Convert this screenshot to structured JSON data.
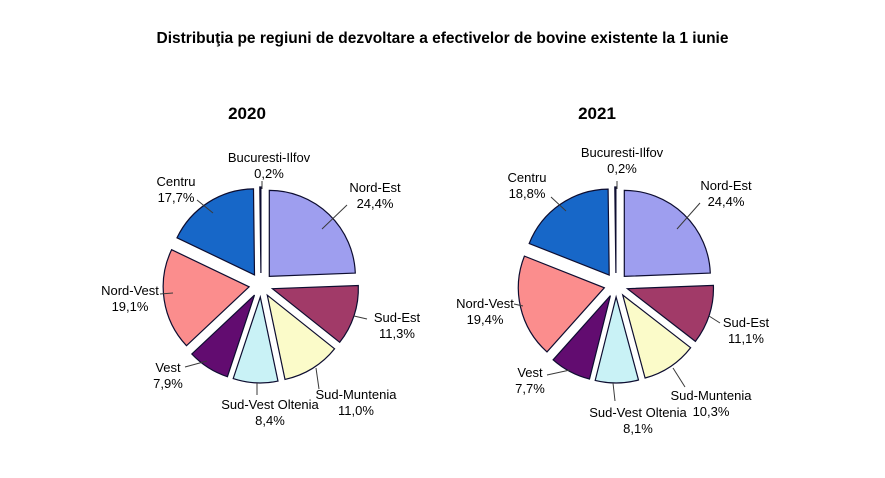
{
  "page": {
    "title": "Distribuţia pe regiuni de dezvoltare a efectivelor de bovine existente la 1 iunie"
  },
  "chart_data": [
    {
      "type": "pie",
      "title": "2020",
      "exploded": true,
      "units": "%",
      "start_angle_deg": 0,
      "direction": "clockwise",
      "label_format": "region name + percent with comma decimal",
      "slices": [
        {
          "label": "Nord-Est",
          "value": 24.4,
          "pct_label": "24,4%",
          "color": "#9E9EEF"
        },
        {
          "label": "Sud-Est",
          "value": 11.3,
          "pct_label": "11,3%",
          "color": "#A13A68"
        },
        {
          "label": "Sud-Muntenia",
          "value": 11.0,
          "pct_label": "11,0%",
          "color": "#FBFBC9"
        },
        {
          "label": "Sud-Vest Oltenia",
          "value": 8.4,
          "pct_label": "8,4%",
          "color": "#C9F2F6"
        },
        {
          "label": "Vest",
          "value": 7.9,
          "pct_label": "7,9%",
          "color": "#620C70"
        },
        {
          "label": "Nord-Vest",
          "value": 19.1,
          "pct_label": "19,1%",
          "color": "#FB8D8D"
        },
        {
          "label": "Centru",
          "value": 17.7,
          "pct_label": "17,7%",
          "color": "#1767C8"
        },
        {
          "label": "Bucuresti-Ilfov",
          "value": 0.2,
          "pct_label": "0,2%",
          "color": "#CCCCFF"
        }
      ]
    },
    {
      "type": "pie",
      "title": "2021",
      "exploded": true,
      "units": "%",
      "start_angle_deg": 0,
      "direction": "clockwise",
      "label_format": "region name + percent with comma decimal",
      "slices": [
        {
          "label": "Nord-Est",
          "value": 24.4,
          "pct_label": "24,4%",
          "color": "#9E9EEF"
        },
        {
          "label": "Sud-Est",
          "value": 11.1,
          "pct_label": "11,1%",
          "color": "#A13A68"
        },
        {
          "label": "Sud-Muntenia",
          "value": 10.3,
          "pct_label": "10,3%",
          "color": "#FBFBC9"
        },
        {
          "label": "Sud-Vest Oltenia",
          "value": 8.1,
          "pct_label": "8,1%",
          "color": "#C9F2F6"
        },
        {
          "label": "Vest",
          "value": 7.7,
          "pct_label": "7,7%",
          "color": "#620C70"
        },
        {
          "label": "Nord-Vest",
          "value": 19.4,
          "pct_label": "19,4%",
          "color": "#FB8D8D"
        },
        {
          "label": "Centru",
          "value": 18.8,
          "pct_label": "18,8%",
          "color": "#1767C8"
        },
        {
          "label": "Bucuresti-Ilfov",
          "value": 0.2,
          "pct_label": "0,2%",
          "color": "#CCCCFF"
        }
      ]
    }
  ]
}
